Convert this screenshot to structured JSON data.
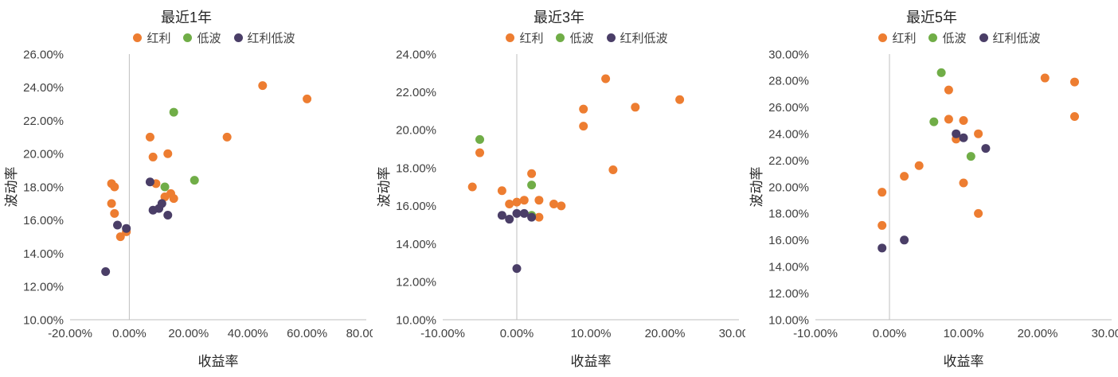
{
  "page": {
    "background": "#FFFFFF"
  },
  "axis": {
    "line_color": "#BFBFBF",
    "tick_label_color": "#404040"
  },
  "legend_labels": [
    "红利",
    "低波",
    "红利低波"
  ],
  "chart_data": [
    {
      "type": "scatter",
      "title": "最近1年",
      "xlabel": "收益率",
      "ylabel": "波动率",
      "xlim": [
        -20,
        80
      ],
      "ylim": [
        10,
        26
      ],
      "xticks": [
        -20,
        0,
        20,
        40,
        60,
        80
      ],
      "yticks": [
        10,
        12,
        14,
        16,
        18,
        20,
        22,
        24,
        26
      ],
      "tick_format": "0.00%",
      "legend_position": "top",
      "grid": false,
      "series": [
        {
          "name": "红利",
          "color": "#ED7D31",
          "points": [
            [
              -6,
              18.2
            ],
            [
              -5,
              18.0
            ],
            [
              -6,
              17.0
            ],
            [
              -5,
              16.4
            ],
            [
              -3,
              15.0
            ],
            [
              -1,
              15.3
            ],
            [
              7,
              21.0
            ],
            [
              8,
              19.8
            ],
            [
              9,
              18.2
            ],
            [
              13,
              20.0
            ],
            [
              12,
              17.4
            ],
            [
              14,
              17.6
            ],
            [
              15,
              17.3
            ],
            [
              33,
              21.0
            ],
            [
              45,
              24.1
            ],
            [
              60,
              23.3
            ]
          ]
        },
        {
          "name": "低波",
          "color": "#70AD47",
          "points": [
            [
              15,
              22.5
            ],
            [
              12,
              18.0
            ],
            [
              22,
              18.4
            ]
          ]
        },
        {
          "name": "红利低波",
          "color": "#4A3E67",
          "points": [
            [
              -8,
              12.9
            ],
            [
              -4,
              15.7
            ],
            [
              -1,
              15.5
            ],
            [
              7,
              18.3
            ],
            [
              8,
              16.6
            ],
            [
              10,
              16.7
            ],
            [
              11,
              17.0
            ],
            [
              13,
              16.3
            ]
          ]
        }
      ]
    },
    {
      "type": "scatter",
      "title": "最近3年",
      "xlabel": "收益率",
      "ylabel": "波动率",
      "xlim": [
        -10,
        30
      ],
      "ylim": [
        10,
        24
      ],
      "xticks": [
        -10,
        0,
        10,
        20,
        30
      ],
      "yticks": [
        10,
        12,
        14,
        16,
        18,
        20,
        22,
        24
      ],
      "tick_format": "0.00%",
      "legend_position": "top",
      "grid": false,
      "series": [
        {
          "name": "红利",
          "color": "#ED7D31",
          "points": [
            [
              -5,
              18.8
            ],
            [
              -6,
              17.0
            ],
            [
              -2,
              16.8
            ],
            [
              -1,
              16.1
            ],
            [
              0,
              16.2
            ],
            [
              1,
              16.3
            ],
            [
              2,
              17.7
            ],
            [
              3,
              16.3
            ],
            [
              3,
              15.4
            ],
            [
              5,
              16.1
            ],
            [
              6,
              16.0
            ],
            [
              9,
              21.1
            ],
            [
              9,
              20.2
            ],
            [
              12,
              22.7
            ],
            [
              13,
              17.9
            ],
            [
              16,
              21.2
            ],
            [
              22,
              21.6
            ]
          ]
        },
        {
          "name": "低波",
          "color": "#70AD47",
          "points": [
            [
              -5,
              19.5
            ],
            [
              2,
              17.1
            ],
            [
              2,
              15.5
            ]
          ]
        },
        {
          "name": "红利低波",
          "color": "#4A3E67",
          "points": [
            [
              -2,
              15.5
            ],
            [
              -1,
              15.3
            ],
            [
              0,
              15.6
            ],
            [
              1,
              15.6
            ],
            [
              2,
              15.4
            ],
            [
              0,
              12.7
            ]
          ]
        }
      ]
    },
    {
      "type": "scatter",
      "title": "最近5年",
      "xlabel": "收益率",
      "ylabel": "波动率",
      "xlim": [
        -10,
        30
      ],
      "ylim": [
        10,
        30
      ],
      "xticks": [
        -10,
        0,
        10,
        20,
        30
      ],
      "yticks": [
        10,
        12,
        14,
        16,
        18,
        20,
        22,
        24,
        26,
        28,
        30
      ],
      "tick_format": "0.00%",
      "legend_position": "top",
      "grid": false,
      "series": [
        {
          "name": "红利",
          "color": "#ED7D31",
          "points": [
            [
              -1,
              19.6
            ],
            [
              -1,
              17.1
            ],
            [
              2,
              20.8
            ],
            [
              4,
              21.6
            ],
            [
              8,
              27.3
            ],
            [
              8,
              25.1
            ],
            [
              9,
              23.6
            ],
            [
              10,
              25.0
            ],
            [
              10,
              20.3
            ],
            [
              12,
              24.0
            ],
            [
              12,
              18.0
            ],
            [
              21,
              28.2
            ],
            [
              25,
              27.9
            ],
            [
              25,
              25.3
            ]
          ]
        },
        {
          "name": "低波",
          "color": "#70AD47",
          "points": [
            [
              7,
              28.6
            ],
            [
              6,
              24.9
            ],
            [
              11,
              22.3
            ]
          ]
        },
        {
          "name": "红利低波",
          "color": "#4A3E67",
          "points": [
            [
              -1,
              15.4
            ],
            [
              2,
              16.0
            ],
            [
              9,
              24.0
            ],
            [
              10,
              23.7
            ],
            [
              13,
              22.9
            ]
          ]
        }
      ]
    }
  ]
}
